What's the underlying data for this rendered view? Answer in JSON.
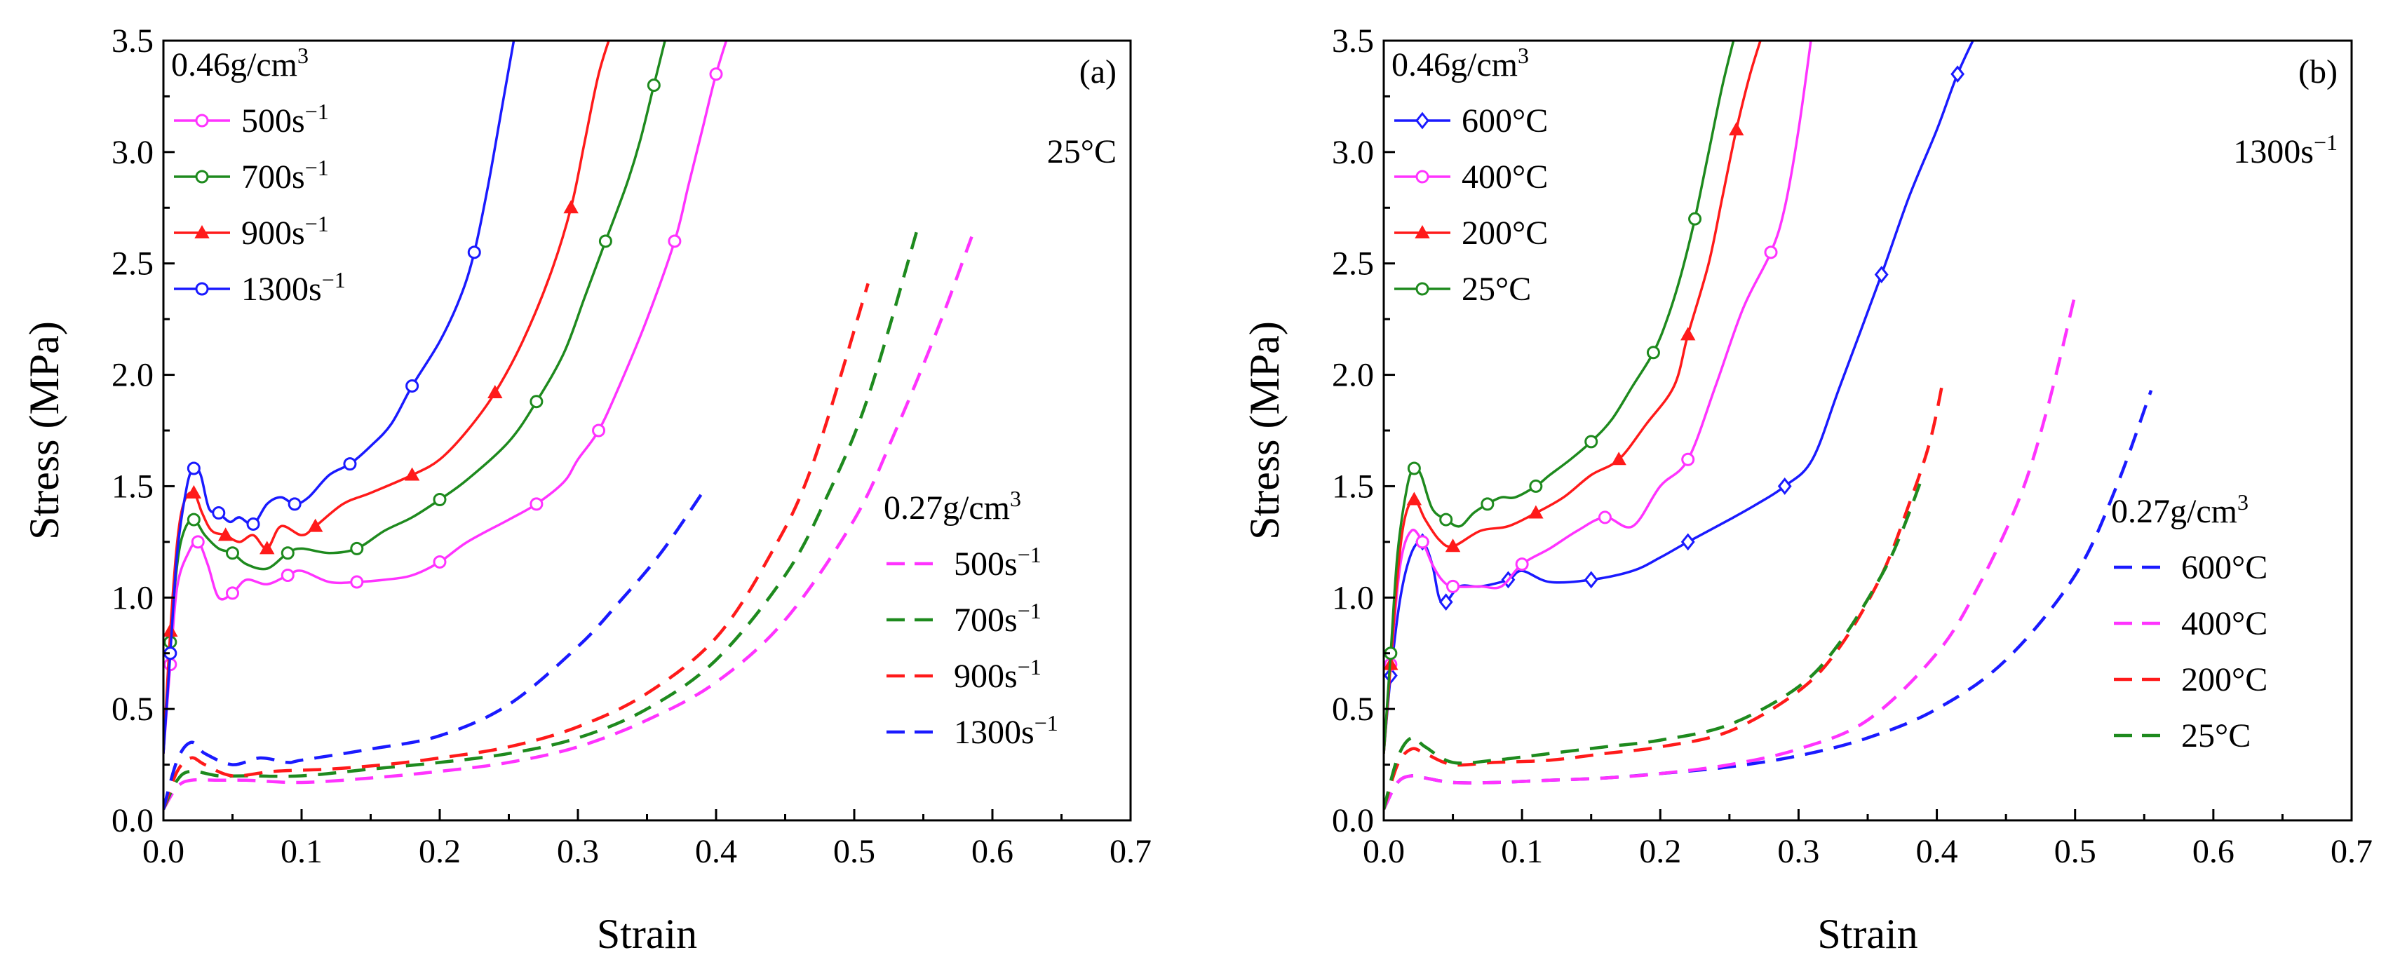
{
  "chart_data": [
    {
      "type": "line",
      "panel_label": "(a)",
      "condition_label": "25°C",
      "xlabel": "Strain",
      "ylabel": "Stress (MPa)",
      "xlim": [
        0,
        0.7
      ],
      "ylim": [
        0,
        3.5
      ],
      "x_ticks": [
        0,
        0.1,
        0.2,
        0.3,
        0.4,
        0.5,
        0.6,
        0.7
      ],
      "x_tick_labels": [
        "0.0",
        "0.1",
        "0.2",
        "0.3",
        "0.4",
        "0.5",
        "0.6",
        "0.7"
      ],
      "y_ticks": [
        0,
        0.5,
        1.0,
        1.5,
        2.0,
        2.5,
        3.0,
        3.5
      ],
      "y_tick_labels": [
        "0.0",
        "0.5",
        "1.0",
        "1.5",
        "2.0",
        "2.5",
        "3.0",
        "3.5"
      ],
      "legend_groups": [
        {
          "title": "0.46g/cm",
          "title_sup": "3",
          "placement": "top-left",
          "style": "solid-marker"
        },
        {
          "title": "0.27g/cm",
          "title_sup": "3",
          "placement": "bottom-right",
          "style": "dashed"
        }
      ],
      "series": [
        {
          "name": "500s",
          "name_sup": "−1",
          "group": 0,
          "color": "#ff33ff",
          "marker": "circle",
          "x": [
            0,
            0.005,
            0.01,
            0.018,
            0.025,
            0.032,
            0.04,
            0.05,
            0.06,
            0.075,
            0.09,
            0.1,
            0.12,
            0.14,
            0.16,
            0.18,
            0.2,
            0.22,
            0.25,
            0.27,
            0.29,
            0.3,
            0.315,
            0.33,
            0.35,
            0.37,
            0.38,
            0.39,
            0.4,
            0.41
          ],
          "y": [
            0.3,
            0.7,
            1.05,
            1.2,
            1.25,
            1.15,
            1.0,
            1.02,
            1.08,
            1.06,
            1.1,
            1.12,
            1.07,
            1.07,
            1.08,
            1.1,
            1.16,
            1.25,
            1.35,
            1.42,
            1.52,
            1.62,
            1.75,
            1.95,
            2.25,
            2.6,
            2.85,
            3.1,
            3.35,
            3.55
          ]
        },
        {
          "name": "700s",
          "name_sup": "−1",
          "group": 0,
          "color": "#1e8a1e",
          "marker": "circle",
          "x": [
            0,
            0.005,
            0.01,
            0.015,
            0.022,
            0.03,
            0.04,
            0.05,
            0.06,
            0.075,
            0.09,
            0.1,
            0.12,
            0.14,
            0.16,
            0.18,
            0.2,
            0.22,
            0.25,
            0.27,
            0.29,
            0.305,
            0.32,
            0.335,
            0.345,
            0.355,
            0.365
          ],
          "y": [
            0.3,
            0.8,
            1.15,
            1.3,
            1.35,
            1.28,
            1.22,
            1.2,
            1.15,
            1.13,
            1.2,
            1.22,
            1.2,
            1.22,
            1.3,
            1.36,
            1.44,
            1.53,
            1.7,
            1.88,
            2.1,
            2.35,
            2.6,
            2.85,
            3.05,
            3.3,
            3.55
          ]
        },
        {
          "name": "900s",
          "name_sup": "−1",
          "group": 0,
          "color": "#ff1a1a",
          "marker": "triangle",
          "x": [
            0,
            0.005,
            0.01,
            0.015,
            0.022,
            0.028,
            0.035,
            0.045,
            0.055,
            0.065,
            0.075,
            0.085,
            0.1,
            0.11,
            0.13,
            0.15,
            0.18,
            0.2,
            0.22,
            0.24,
            0.26,
            0.28,
            0.295,
            0.305,
            0.315,
            0.325
          ],
          "y": [
            0.3,
            0.85,
            1.25,
            1.43,
            1.47,
            1.38,
            1.3,
            1.28,
            1.25,
            1.28,
            1.22,
            1.32,
            1.28,
            1.32,
            1.42,
            1.47,
            1.55,
            1.62,
            1.75,
            1.92,
            2.15,
            2.45,
            2.75,
            3.05,
            3.35,
            3.55
          ]
        },
        {
          "name": "1300s",
          "name_sup": "−1",
          "group": 0,
          "color": "#1a1aff",
          "marker": "circle",
          "x": [
            0,
            0.005,
            0.01,
            0.017,
            0.022,
            0.027,
            0.033,
            0.04,
            0.048,
            0.055,
            0.065,
            0.075,
            0.085,
            0.095,
            0.105,
            0.12,
            0.135,
            0.15,
            0.165,
            0.18,
            0.2,
            0.215,
            0.225,
            0.235,
            0.245,
            0.255
          ],
          "y": [
            0.3,
            0.75,
            1.2,
            1.5,
            1.58,
            1.55,
            1.4,
            1.38,
            1.34,
            1.36,
            1.33,
            1.42,
            1.45,
            1.42,
            1.45,
            1.55,
            1.6,
            1.68,
            1.78,
            1.95,
            2.15,
            2.35,
            2.55,
            2.85,
            3.2,
            3.55
          ]
        },
        {
          "name": "500s",
          "name_sup": "−1",
          "group": 1,
          "color": "#ff33ff",
          "x": [
            0,
            0.01,
            0.02,
            0.04,
            0.06,
            0.1,
            0.15,
            0.2,
            0.25,
            0.3,
            0.35,
            0.4,
            0.45,
            0.5,
            0.53,
            0.56,
            0.585
          ],
          "y": [
            0.05,
            0.15,
            0.18,
            0.18,
            0.18,
            0.17,
            0.19,
            0.22,
            0.26,
            0.33,
            0.45,
            0.62,
            0.9,
            1.35,
            1.75,
            2.2,
            2.62
          ]
        },
        {
          "name": "700s",
          "name_sup": "−1",
          "group": 1,
          "color": "#1e8a1e",
          "x": [
            0,
            0.01,
            0.02,
            0.04,
            0.06,
            0.1,
            0.15,
            0.2,
            0.25,
            0.3,
            0.35,
            0.4,
            0.45,
            0.48,
            0.51,
            0.545
          ],
          "y": [
            0.05,
            0.18,
            0.22,
            0.2,
            0.2,
            0.2,
            0.23,
            0.26,
            0.3,
            0.37,
            0.5,
            0.72,
            1.1,
            1.45,
            1.9,
            2.64
          ]
        },
        {
          "name": "900s",
          "name_sup": "−1",
          "group": 1,
          "color": "#ff1a1a",
          "x": [
            0,
            0.01,
            0.02,
            0.03,
            0.05,
            0.08,
            0.12,
            0.16,
            0.2,
            0.25,
            0.3,
            0.35,
            0.4,
            0.44,
            0.47,
            0.51
          ],
          "y": [
            0.05,
            0.22,
            0.28,
            0.25,
            0.2,
            0.22,
            0.23,
            0.25,
            0.28,
            0.33,
            0.42,
            0.57,
            0.82,
            1.2,
            1.6,
            2.41
          ]
        },
        {
          "name": "1300s",
          "name_sup": "−1",
          "group": 1,
          "color": "#1a1aff",
          "x": [
            0,
            0.01,
            0.02,
            0.03,
            0.05,
            0.07,
            0.09,
            0.1,
            0.15,
            0.2,
            0.25,
            0.3,
            0.33,
            0.36,
            0.39
          ],
          "y": [
            0.05,
            0.27,
            0.35,
            0.3,
            0.25,
            0.28,
            0.26,
            0.27,
            0.32,
            0.38,
            0.52,
            0.78,
            0.98,
            1.2,
            1.47
          ]
        }
      ]
    },
    {
      "type": "line",
      "panel_label": "(b)",
      "condition_label": "1300s",
      "condition_sup": "−1",
      "xlabel": "Strain",
      "ylabel": "Stress (MPa)",
      "xlim": [
        0,
        0.7
      ],
      "ylim": [
        0,
        3.5
      ],
      "x_ticks": [
        0,
        0.1,
        0.2,
        0.3,
        0.4,
        0.5,
        0.6,
        0.7
      ],
      "x_tick_labels": [
        "0.0",
        "0.1",
        "0.2",
        "0.3",
        "0.4",
        "0.5",
        "0.6",
        "0.7"
      ],
      "y_ticks": [
        0,
        0.5,
        1.0,
        1.5,
        2.0,
        2.5,
        3.0,
        3.5
      ],
      "y_tick_labels": [
        "0.0",
        "0.5",
        "1.0",
        "1.5",
        "2.0",
        "2.5",
        "3.0",
        "3.5"
      ],
      "legend_groups": [
        {
          "title": "0.46g/cm",
          "title_sup": "3",
          "placement": "top-left",
          "style": "solid-marker"
        },
        {
          "title": "0.27g/cm",
          "title_sup": "3",
          "placement": "bottom-right",
          "style": "dashed"
        }
      ],
      "series": [
        {
          "name": "600°C",
          "group": 0,
          "color": "#1a1aff",
          "marker": "diamond",
          "x": [
            0,
            0.005,
            0.012,
            0.02,
            0.028,
            0.035,
            0.04,
            0.045,
            0.055,
            0.07,
            0.09,
            0.1,
            0.12,
            0.15,
            0.18,
            0.2,
            0.22,
            0.25,
            0.27,
            0.29,
            0.31,
            0.33,
            0.36,
            0.38,
            0.4,
            0.415,
            0.43
          ],
          "y": [
            0.3,
            0.65,
            1.0,
            1.2,
            1.25,
            1.15,
            1.0,
            0.98,
            1.05,
            1.05,
            1.08,
            1.12,
            1.07,
            1.08,
            1.12,
            1.18,
            1.25,
            1.35,
            1.42,
            1.5,
            1.62,
            1.95,
            2.45,
            2.8,
            3.1,
            3.35,
            3.55
          ]
        },
        {
          "name": "400°C",
          "group": 0,
          "color": "#ff33ff",
          "marker": "circle",
          "x": [
            0,
            0.005,
            0.012,
            0.02,
            0.028,
            0.035,
            0.042,
            0.05,
            0.07,
            0.085,
            0.1,
            0.12,
            0.14,
            0.16,
            0.18,
            0.2,
            0.22,
            0.24,
            0.26,
            0.28,
            0.29,
            0.3,
            0.31
          ],
          "y": [
            0.3,
            0.7,
            1.15,
            1.3,
            1.25,
            1.15,
            1.08,
            1.05,
            1.05,
            1.05,
            1.15,
            1.22,
            1.3,
            1.36,
            1.32,
            1.5,
            1.62,
            1.95,
            2.3,
            2.55,
            2.75,
            3.1,
            3.55
          ]
        },
        {
          "name": "200°C",
          "group": 0,
          "color": "#ff1a1a",
          "marker": "triangle",
          "x": [
            0,
            0.005,
            0.01,
            0.015,
            0.022,
            0.03,
            0.04,
            0.05,
            0.07,
            0.09,
            0.11,
            0.13,
            0.15,
            0.17,
            0.19,
            0.21,
            0.22,
            0.235,
            0.245,
            0.255,
            0.265,
            0.275
          ],
          "y": [
            0.3,
            0.7,
            1.1,
            1.35,
            1.44,
            1.35,
            1.26,
            1.23,
            1.3,
            1.32,
            1.38,
            1.45,
            1.55,
            1.62,
            1.78,
            1.95,
            2.18,
            2.5,
            2.8,
            3.1,
            3.35,
            3.55
          ]
        },
        {
          "name": "25°C",
          "group": 0,
          "color": "#1e8a1e",
          "marker": "circle",
          "x": [
            0,
            0.005,
            0.01,
            0.017,
            0.022,
            0.027,
            0.035,
            0.045,
            0.055,
            0.065,
            0.075,
            0.085,
            0.095,
            0.11,
            0.12,
            0.135,
            0.15,
            0.165,
            0.18,
            0.195,
            0.205,
            0.215,
            0.225,
            0.235,
            0.245,
            0.255
          ],
          "y": [
            0.3,
            0.75,
            1.2,
            1.5,
            1.58,
            1.55,
            1.4,
            1.35,
            1.32,
            1.38,
            1.42,
            1.45,
            1.45,
            1.5,
            1.55,
            1.62,
            1.7,
            1.8,
            1.95,
            2.1,
            2.25,
            2.45,
            2.7,
            3.0,
            3.3,
            3.55
          ]
        },
        {
          "name": "600°C",
          "group": 1,
          "color": "#1a1aff",
          "x": [
            0,
            0.01,
            0.02,
            0.03,
            0.05,
            0.08,
            0.12,
            0.16,
            0.2,
            0.25,
            0.3,
            0.35,
            0.4,
            0.45,
            0.5,
            0.53,
            0.555
          ],
          "y": [
            0.05,
            0.17,
            0.2,
            0.19,
            0.17,
            0.17,
            0.18,
            0.19,
            0.21,
            0.24,
            0.29,
            0.37,
            0.5,
            0.72,
            1.1,
            1.5,
            1.93
          ]
        },
        {
          "name": "400°C",
          "group": 1,
          "color": "#ff33ff",
          "x": [
            0,
            0.01,
            0.02,
            0.03,
            0.05,
            0.08,
            0.12,
            0.16,
            0.2,
            0.25,
            0.3,
            0.35,
            0.4,
            0.43,
            0.46,
            0.48,
            0.5
          ],
          "y": [
            0.05,
            0.17,
            0.2,
            0.19,
            0.17,
            0.17,
            0.18,
            0.19,
            0.21,
            0.25,
            0.32,
            0.45,
            0.75,
            1.05,
            1.45,
            1.85,
            2.36
          ]
        },
        {
          "name": "200°C",
          "group": 1,
          "color": "#ff1a1a",
          "x": [
            0,
            0.01,
            0.02,
            0.03,
            0.05,
            0.08,
            0.12,
            0.16,
            0.2,
            0.25,
            0.3,
            0.33,
            0.36,
            0.38,
            0.395,
            0.405
          ],
          "y": [
            0.05,
            0.25,
            0.32,
            0.3,
            0.25,
            0.26,
            0.27,
            0.3,
            0.33,
            0.4,
            0.58,
            0.78,
            1.1,
            1.42,
            1.7,
            1.99
          ]
        },
        {
          "name": "25°C",
          "group": 1,
          "color": "#1e8a1e",
          "x": [
            0,
            0.01,
            0.02,
            0.03,
            0.05,
            0.08,
            0.12,
            0.16,
            0.2,
            0.25,
            0.3,
            0.33,
            0.36,
            0.375,
            0.39
          ],
          "y": [
            0.05,
            0.28,
            0.37,
            0.33,
            0.26,
            0.27,
            0.3,
            0.33,
            0.36,
            0.43,
            0.6,
            0.8,
            1.1,
            1.3,
            1.55
          ]
        }
      ]
    }
  ]
}
